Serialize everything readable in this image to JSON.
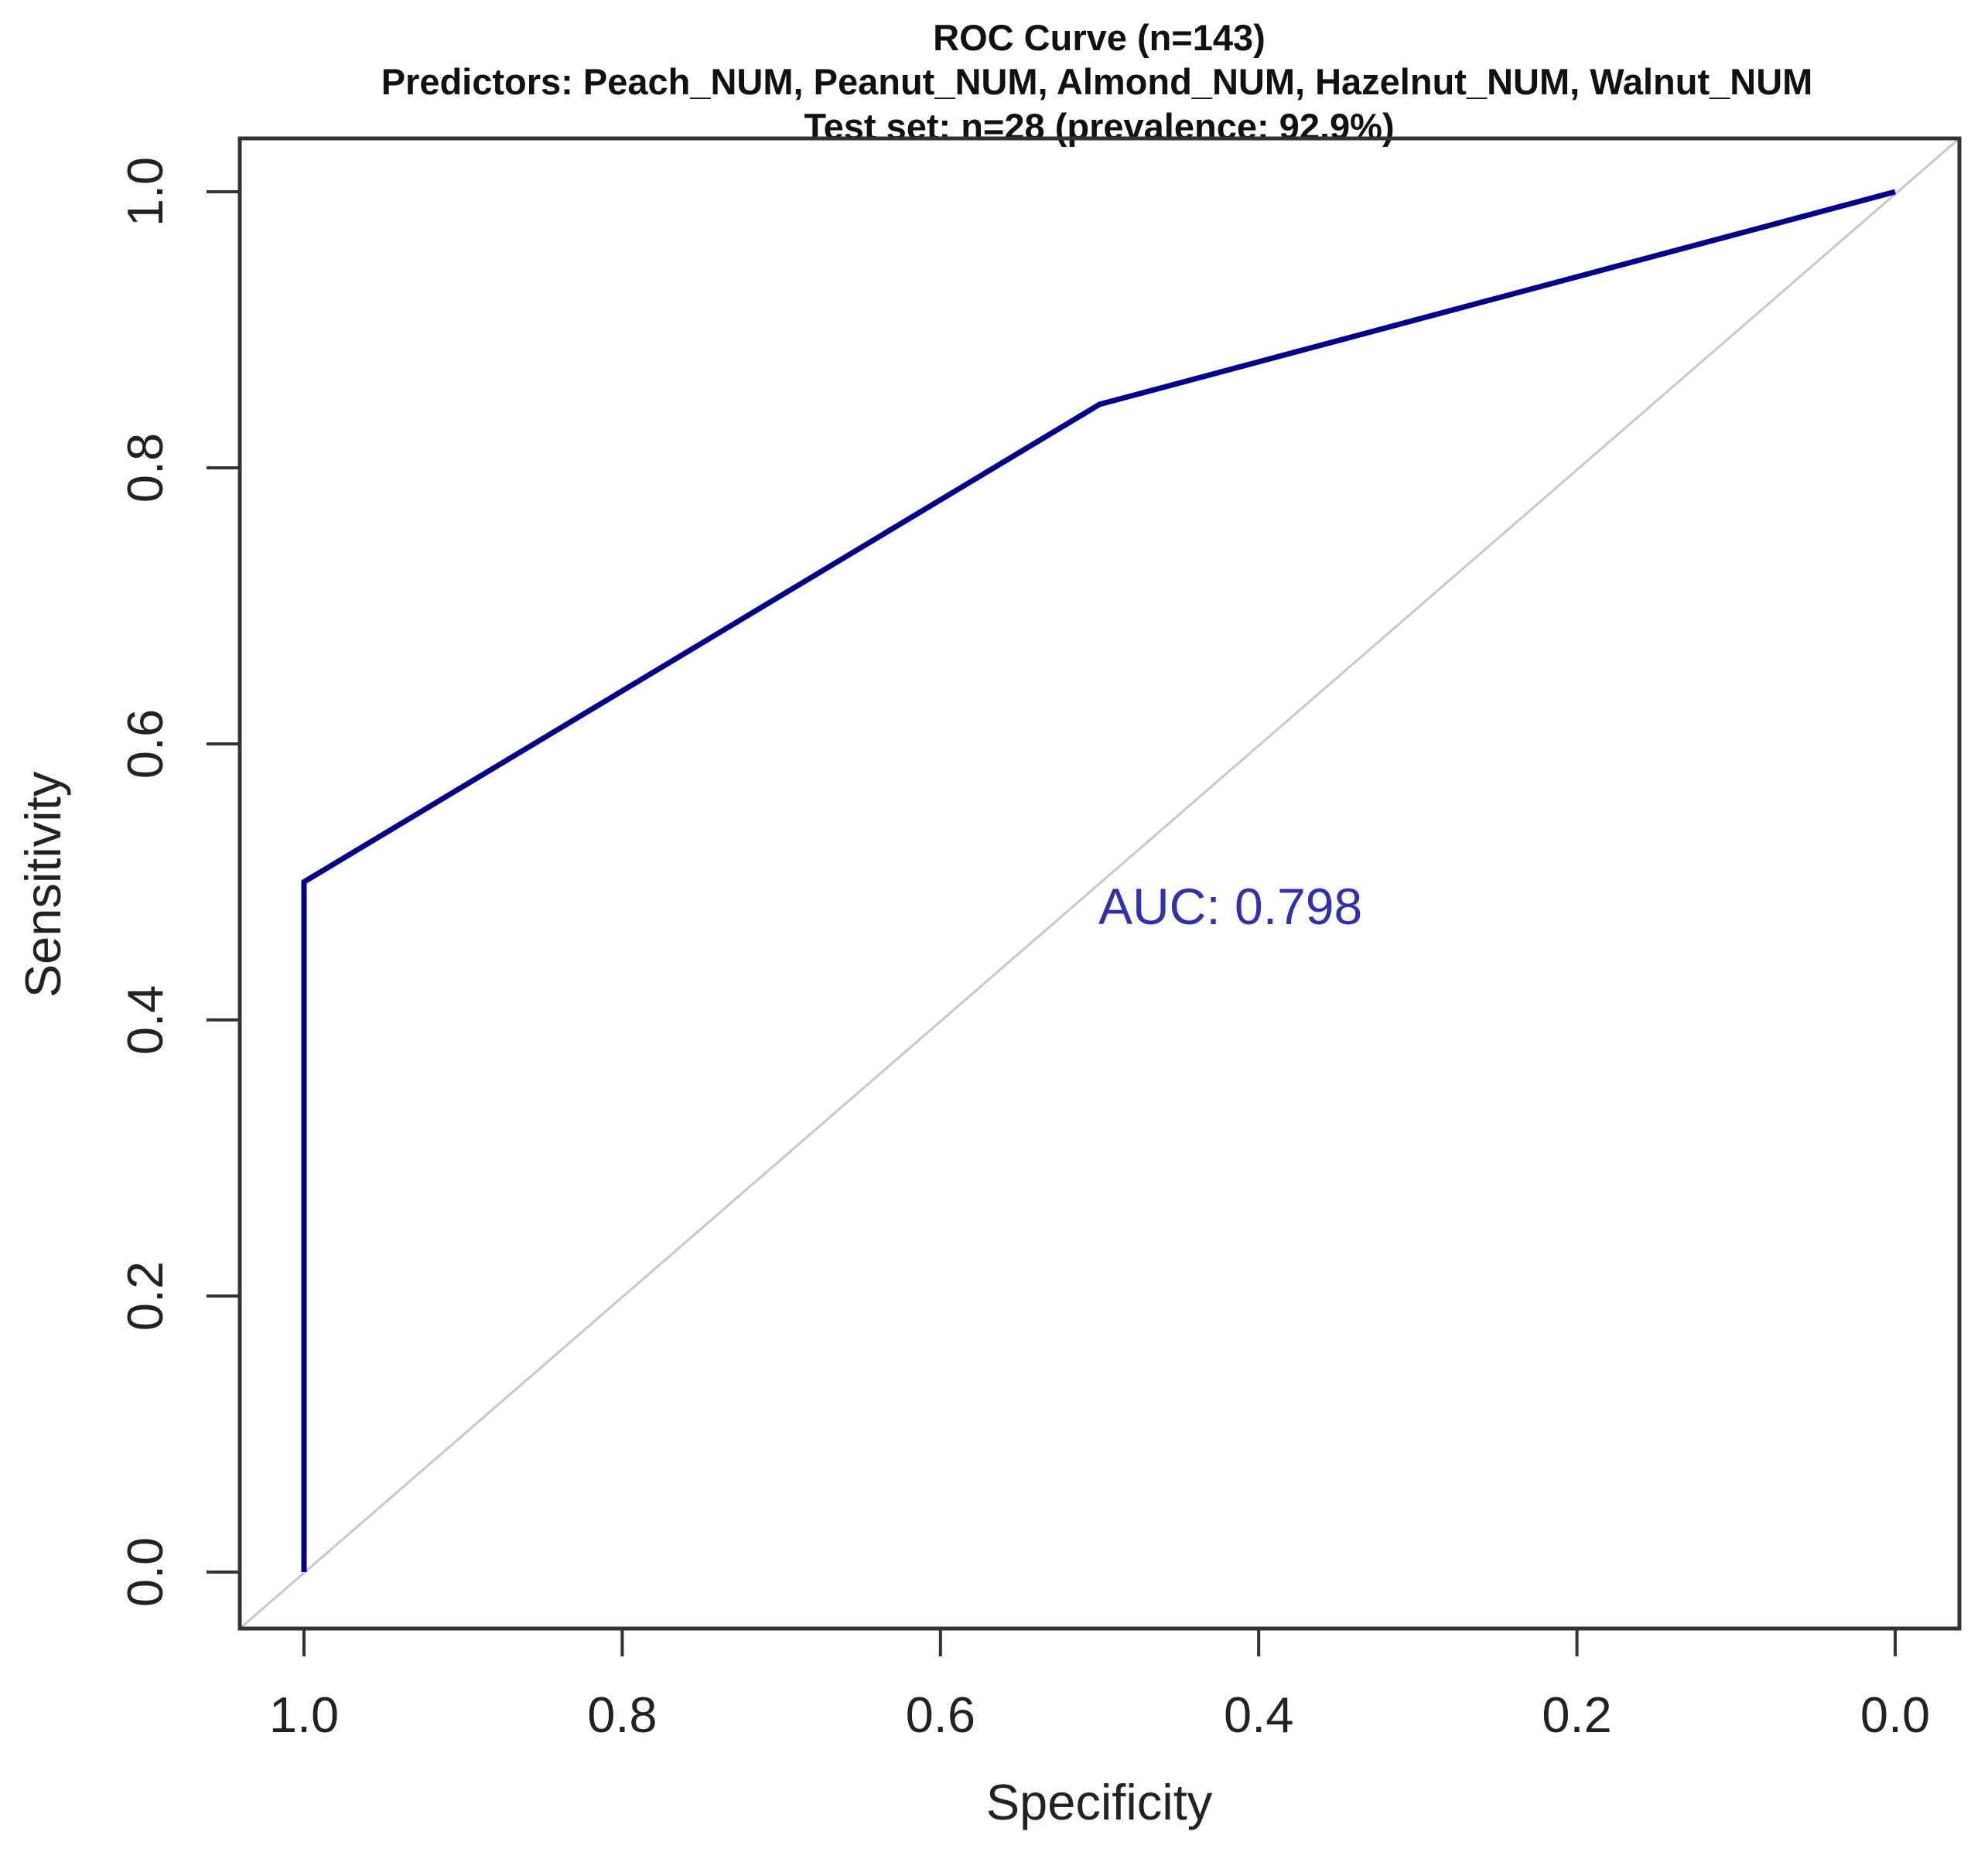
{
  "chart_data": {
    "type": "line",
    "title": "ROC Curve (n=143)",
    "subtitle_lines": [
      "Predictors: Peach_NUM, Peanut_NUM, Almond_NUM, Hazelnut_NUM, Walnut_NUM",
      "Test set: n=28 (prevalence: 92.9%)"
    ],
    "xlabel": "Specificity",
    "ylabel": "Sensitivity",
    "xlim": [
      1.0,
      0.0
    ],
    "ylim": [
      0.0,
      1.0
    ],
    "x_reversed": true,
    "x_ticks": [
      1.0,
      0.8,
      0.6,
      0.4,
      0.2,
      0.0
    ],
    "x_tick_labels": [
      "1.0",
      "0.8",
      "0.6",
      "0.4",
      "0.2",
      "0.0"
    ],
    "y_ticks": [
      0.0,
      0.2,
      0.4,
      0.6,
      0.8,
      1.0
    ],
    "y_tick_labels": [
      "0.0",
      "0.2",
      "0.4",
      "0.6",
      "0.8",
      "1.0"
    ],
    "grid": false,
    "legend": null,
    "series": [
      {
        "name": "ROC",
        "color": "#00008b",
        "specificity": [
          1.0,
          1.0,
          0.5,
          0.0
        ],
        "sensitivity": [
          0.0,
          0.5,
          0.846,
          1.0
        ]
      }
    ],
    "reference_line": {
      "name": "chance diagonal",
      "color": "#c8c8c8"
    },
    "annotations": [
      {
        "text": "AUC: 0.798",
        "specificity": 0.49,
        "sensitivity": 0.48,
        "color": "#3030b0"
      }
    ],
    "auc": 0.798
  },
  "labels": {
    "title": "ROC Curve (n=143)",
    "predictors": "Predictors: Peach_NUM, Peanut_NUM, Almond_NUM, Hazelnut_NUM, Walnut_NUM",
    "testset": "Test set: n=28 (prevalence: 92.9%)",
    "xlabel": "Specificity",
    "ylabel": "Sensitivity",
    "auc": "AUC: 0.798"
  }
}
